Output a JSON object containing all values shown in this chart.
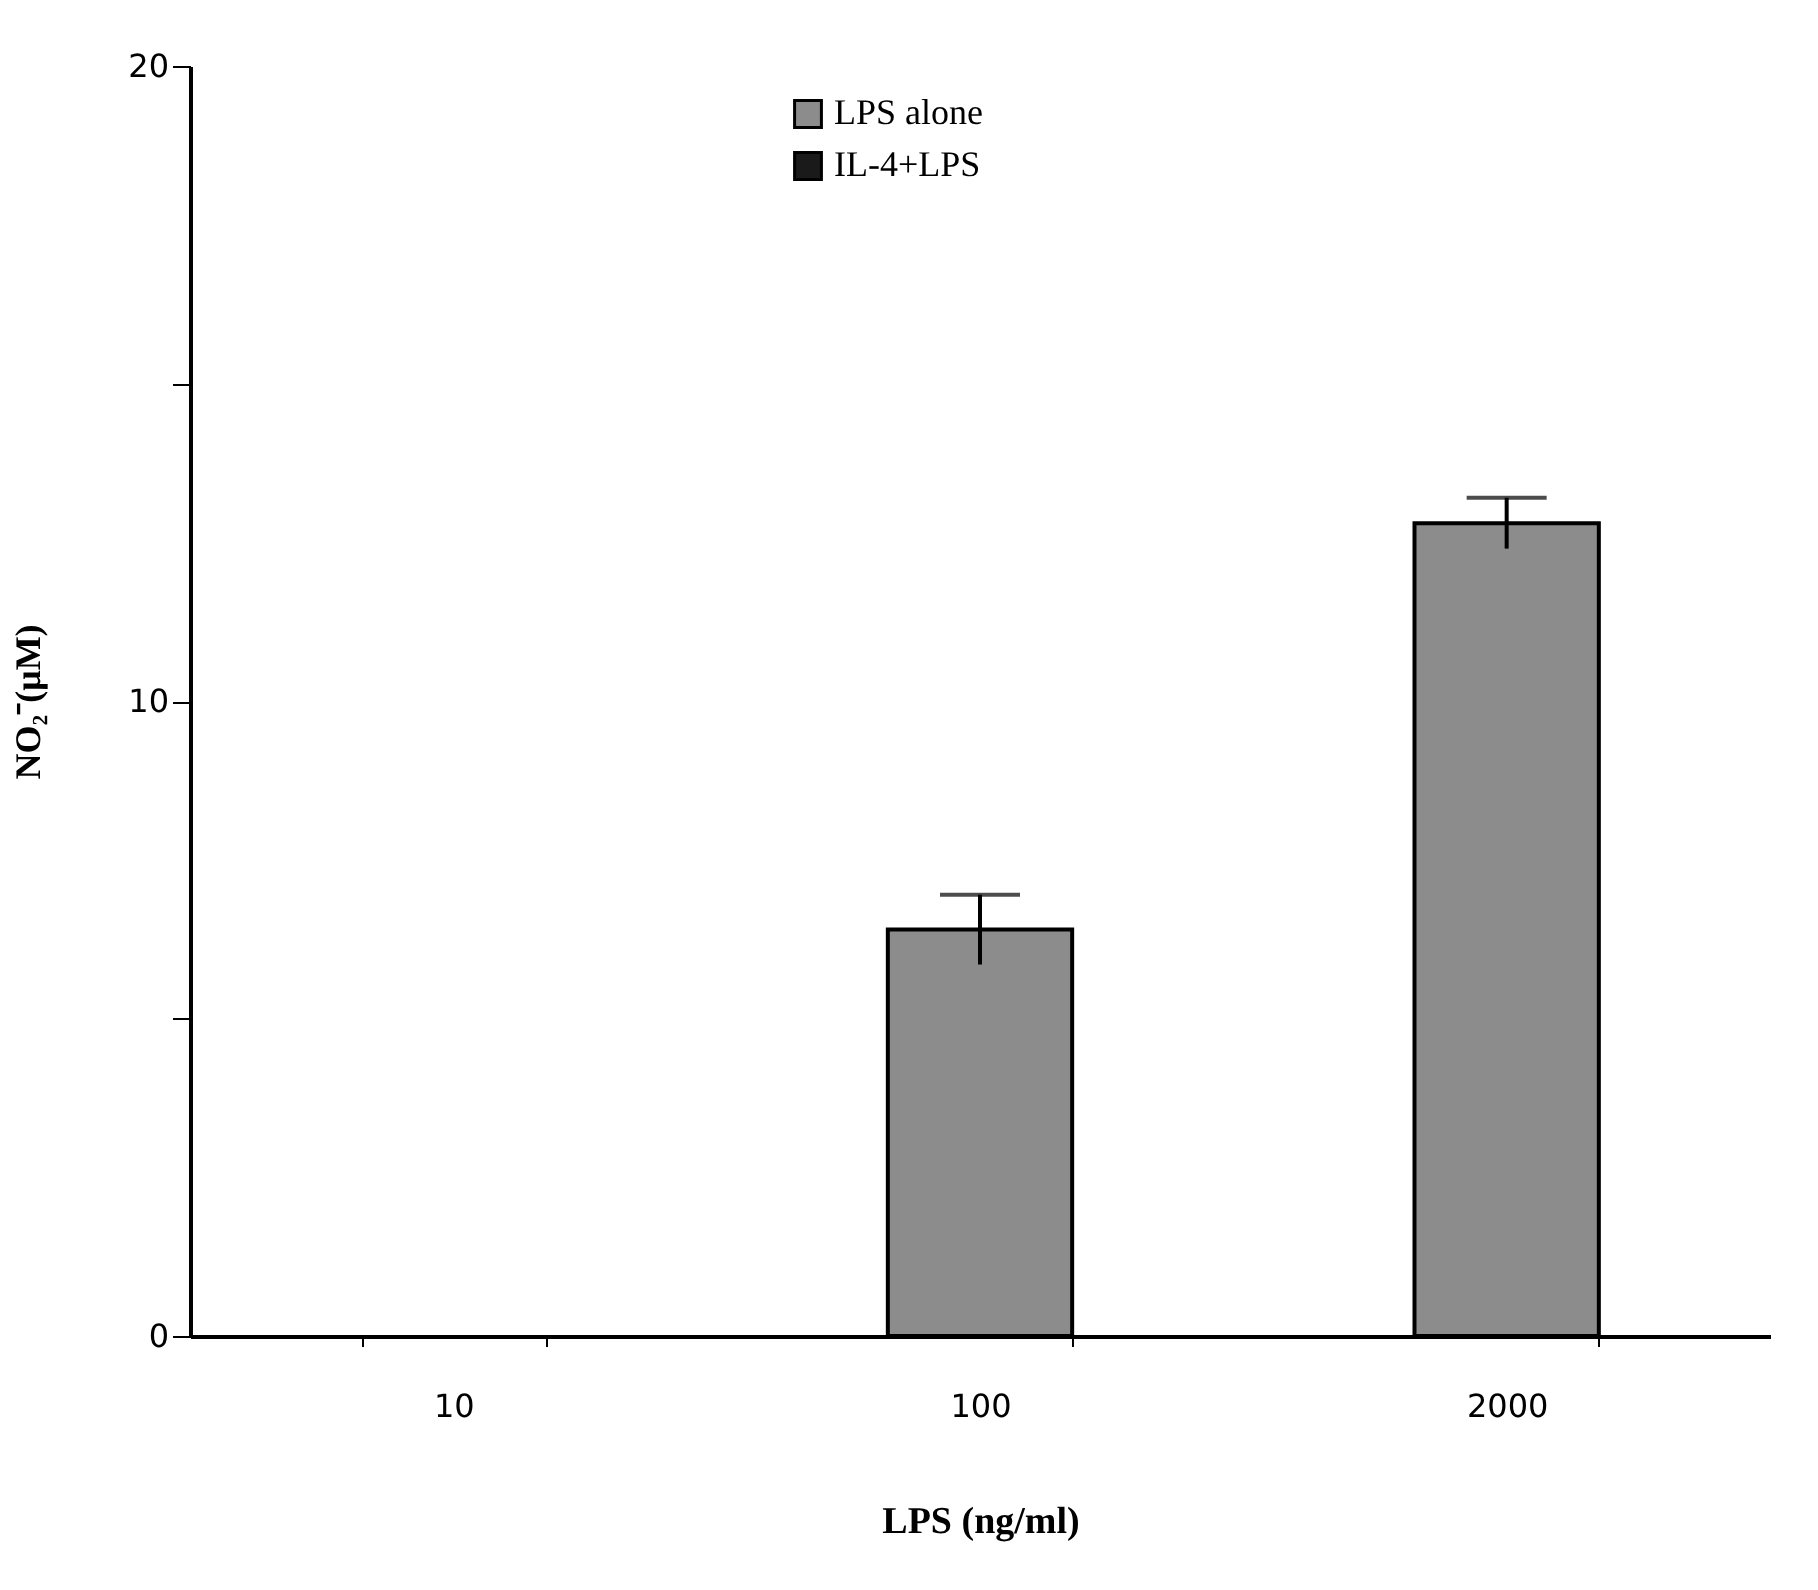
{
  "chart_data": {
    "type": "bar",
    "xlabel": "LPS  (ng/ml)",
    "ylabel": "NO₂⁻(μM)",
    "categories": [
      "10",
      "100",
      "2000"
    ],
    "series": [
      {
        "name": "LPS alone",
        "color": "#8c8c8c",
        "values": [
          null,
          6.4,
          12.8
        ],
        "errors": [
          null,
          0.55,
          0.4
        ]
      },
      {
        "name": "IL-4+LPS",
        "color": "#1a1a1a",
        "values": [
          null,
          null,
          null
        ]
      }
    ],
    "ylim": [
      0,
      20
    ],
    "yticks": [
      0,
      {
        "value": 5,
        "label": null
      },
      10,
      {
        "value": 15,
        "label": null
      },
      20
    ],
    "grid": false,
    "legend": "top"
  }
}
